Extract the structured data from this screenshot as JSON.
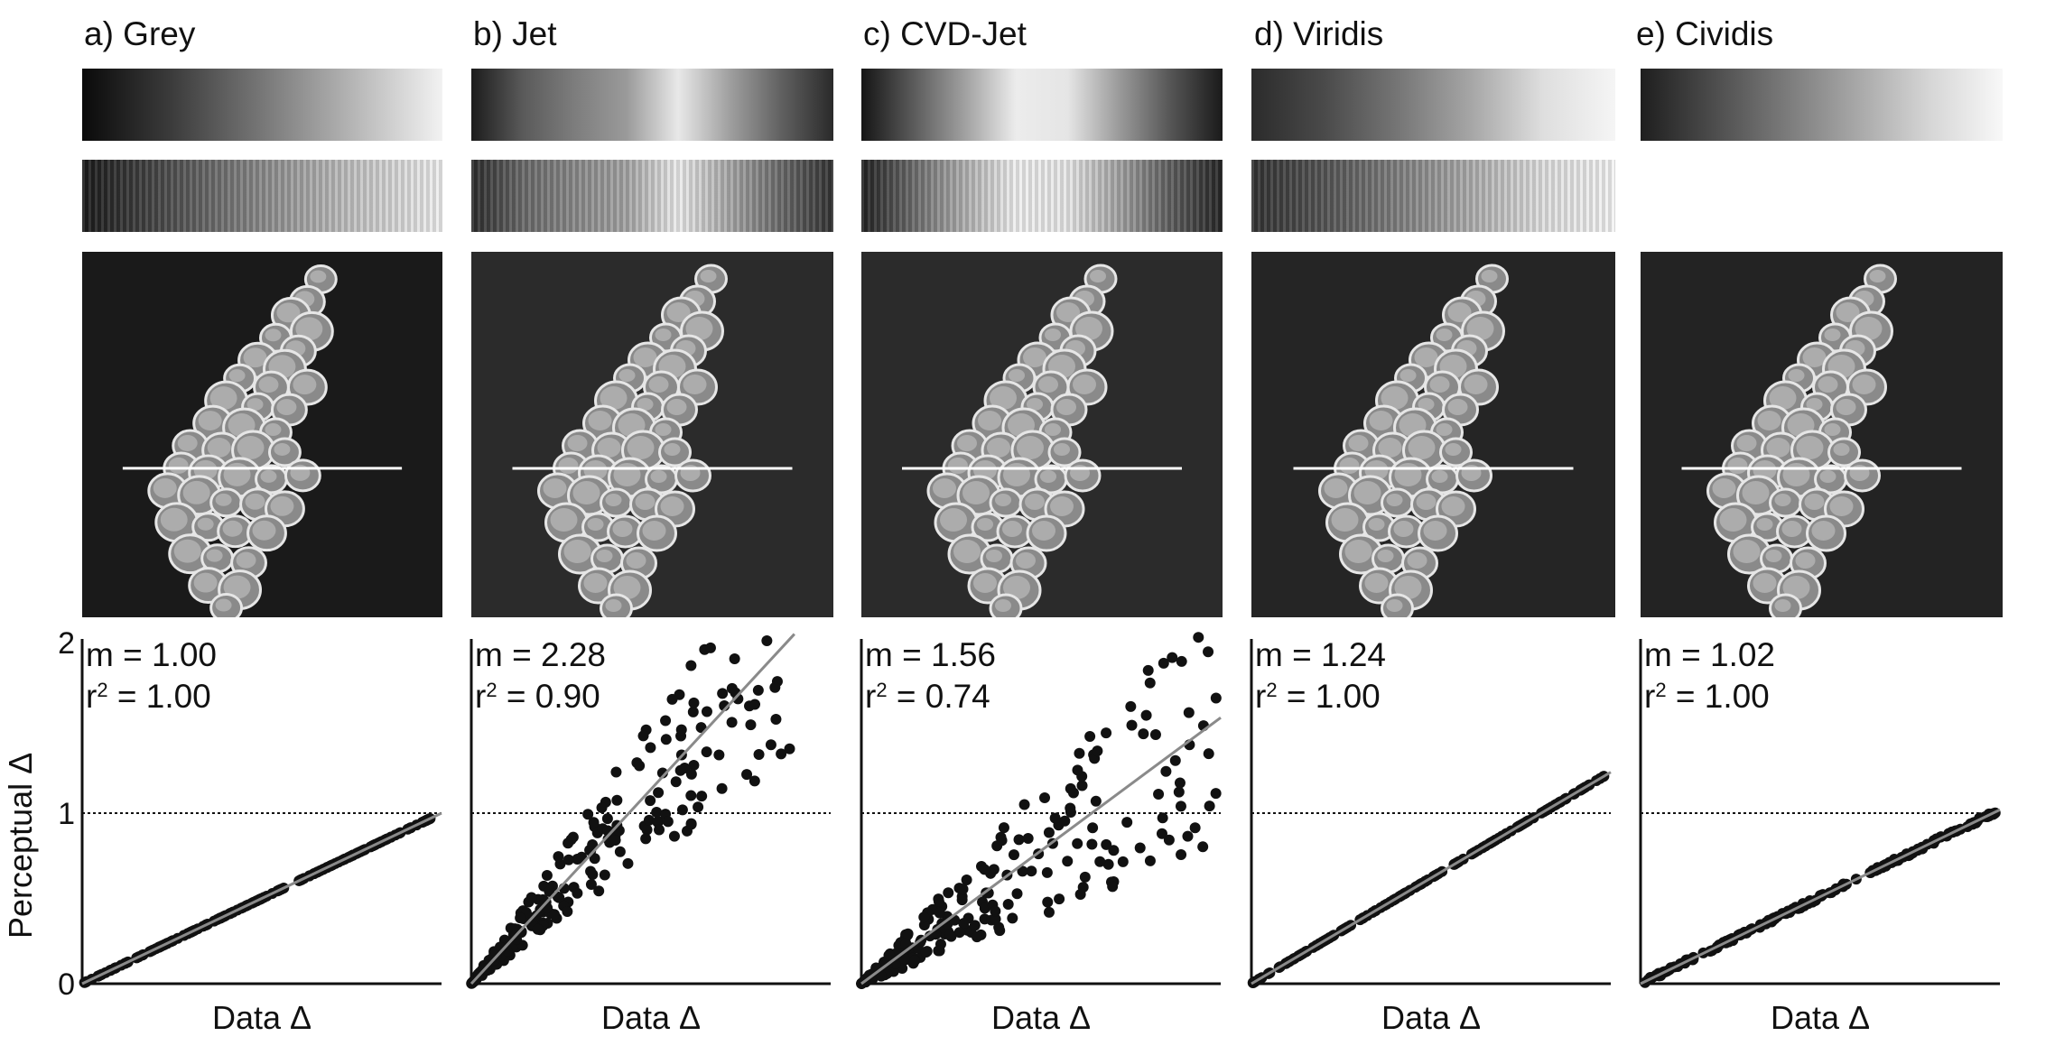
{
  "panels": [
    {
      "id": "grey",
      "title": "a) Grey",
      "stops": [
        "#0a0a0a",
        "#3c3c3c",
        "#777777",
        "#b5b5b5",
        "#f2f2f2"
      ],
      "stops_cvd": [
        "#1b1b1b",
        "#505050",
        "#8b8b8b",
        "#c3c3c3",
        "#f0f0f0"
      ],
      "m_label": "m = 1.00",
      "r2_label": "1.00"
    },
    {
      "id": "jet",
      "title": "b) Jet",
      "stops": [
        "#1c1c1c",
        "#5a5a5a",
        "#7d7d7d",
        "#9a9a9a",
        "#e8e8e8",
        "#9f9f9f",
        "#606060",
        "#2a2a2a"
      ],
      "stops_cvd": [
        "#2c2c2c",
        "#6a6a6a",
        "#8a8a8a",
        "#a5a5a5",
        "#ededed",
        "#a8a8a8",
        "#6a6a6a",
        "#333333"
      ],
      "m_label": "m = 2.28",
      "r2_label": "0.90"
    },
    {
      "id": "cvdjet",
      "title": "c) CVD-Jet",
      "stops": [
        "#151515",
        "#5a5a5a",
        "#a0a0a0",
        "#ececec",
        "#e5e5e5",
        "#9a9a9a",
        "#555555",
        "#1a1a1a"
      ],
      "stops_cvd": [
        "#222222",
        "#6b6b6b",
        "#b0b0b0",
        "#f0f0f0",
        "#e8e8e8",
        "#a4a4a4",
        "#5e5e5e",
        "#262626"
      ],
      "m_label": "m = 1.56",
      "r2_label": "0.74"
    },
    {
      "id": "viridis",
      "title": "d) Viridis",
      "stops": [
        "#2b2b2b",
        "#4a4a4a",
        "#757575",
        "#a5a5a5",
        "#dedede",
        "#f5f5f5"
      ],
      "stops_cvd": [
        "#333333",
        "#555555",
        "#7f7f7f",
        "#adadad",
        "#e0e0e0",
        "#f4f4f4"
      ],
      "m_label": "m = 1.24",
      "r2_label": "1.00"
    },
    {
      "id": "cividis",
      "title": "e) Cividis",
      "stops": [
        "#1e1e1e",
        "#4c4c4c",
        "#7a7a7a",
        "#a8a8a8",
        "#d6d6d6",
        "#f8f8f8"
      ],
      "stops_cvd": null,
      "m_label": "m = 1.02",
      "r2_label": "1.00"
    }
  ],
  "labels": {
    "r2_prefix": "r",
    "r2_sup": "2",
    "r2_eq": " = ",
    "ylabel": "Perceptual Δ",
    "xlabel": "Data Δ"
  },
  "chart_data": [
    {
      "type": "scatter",
      "title": "a) Grey",
      "xlabel": "Data Δ",
      "ylabel": "Perceptual Δ",
      "ylim": [
        0,
        2
      ],
      "yticks": [
        0,
        1,
        2
      ],
      "reference_line": 1,
      "fit_slope": 1.0,
      "r2": 1.0,
      "dispersion": 0.0,
      "max_y": 0.97,
      "grid": false
    },
    {
      "type": "scatter",
      "title": "b) Jet",
      "xlabel": "Data Δ",
      "ylim": [
        0,
        2
      ],
      "yticks": [
        0,
        1,
        2
      ],
      "reference_line": 1,
      "fit_slope": 2.28,
      "r2": 0.9,
      "dispersion": 0.35,
      "max_y": 2.05,
      "grid": false
    },
    {
      "type": "scatter",
      "title": "c) CVD-Jet",
      "xlabel": "Data Δ",
      "ylim": [
        0,
        2
      ],
      "yticks": [
        0,
        1,
        2
      ],
      "reference_line": 1,
      "fit_slope": 1.56,
      "r2": 0.74,
      "dispersion": 0.5,
      "max_y": 1.85,
      "grid": false
    },
    {
      "type": "scatter",
      "title": "d) Viridis",
      "xlabel": "Data Δ",
      "ylim": [
        0,
        2
      ],
      "yticks": [
        0,
        1,
        2
      ],
      "reference_line": 1,
      "fit_slope": 1.24,
      "r2": 1.0,
      "dispersion": 0.0,
      "max_y": 1.22,
      "grid": false
    },
    {
      "type": "scatter",
      "title": "e) Cividis",
      "xlabel": "Data Δ",
      "ylim": [
        0,
        2
      ],
      "yticks": [
        0,
        1,
        2
      ],
      "reference_line": 1,
      "fit_slope": 1.02,
      "r2": 1.0,
      "dispersion": 0.02,
      "max_y": 1.01,
      "grid": false
    }
  ]
}
